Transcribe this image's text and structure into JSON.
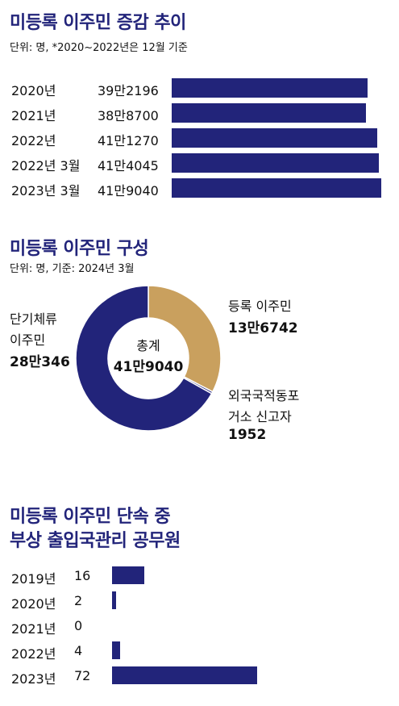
{
  "section1": {
    "title": "미등록 이주민 증감 추이",
    "unit": "단위: 명, *2020~2022년은 12월 기준"
  },
  "section2": {
    "title": "미등록 이주민 구성",
    "unit": "단위: 명, 기준: 2024년 3월",
    "center_label": "총계",
    "center_value": "41만9040",
    "left_label_line1": "단기체류",
    "left_label_line2": "이주민",
    "left_value": "28만346",
    "right_top_label": "등록 이주민",
    "right_top_value": "13만6742",
    "right_bottom_line1": "외국국적동포",
    "right_bottom_line2": "거소 신고자",
    "right_bottom_value": "1952"
  },
  "section3": {
    "title_line1": "미등록 이주민 단속 중",
    "title_line2": "부상 출입국관리 공무원"
  },
  "colors": {
    "navy": "#22247a",
    "tan": "#c9a05e"
  },
  "chart_data": [
    {
      "type": "bar",
      "orientation": "horizontal",
      "categories": [
        "2020년",
        "2021년",
        "2022년",
        "2022년 3월",
        "2023년 3월"
      ],
      "labels": [
        "39만2196",
        "38만8700",
        "41만1270",
        "41만4045",
        "41만9040"
      ],
      "values": [
        392196,
        388700,
        411270,
        414045,
        419040
      ]
    },
    {
      "type": "pie",
      "donut": true,
      "categories": [
        "단기체류 이주민",
        "등록 이주민",
        "외국국적동포 거소 신고자"
      ],
      "labels": [
        "28만346",
        "13만6742",
        "1952"
      ],
      "values": [
        280346,
        136742,
        1952
      ],
      "colors": [
        "#22247a",
        "#c9a05e",
        "#22247a"
      ]
    },
    {
      "type": "bar",
      "orientation": "horizontal",
      "categories": [
        "2019년",
        "2020년",
        "2021년",
        "2022년",
        "2023년"
      ],
      "labels": [
        "16",
        "2",
        "0",
        "4",
        "72"
      ],
      "values": [
        16,
        2,
        0,
        4,
        72
      ]
    }
  ]
}
